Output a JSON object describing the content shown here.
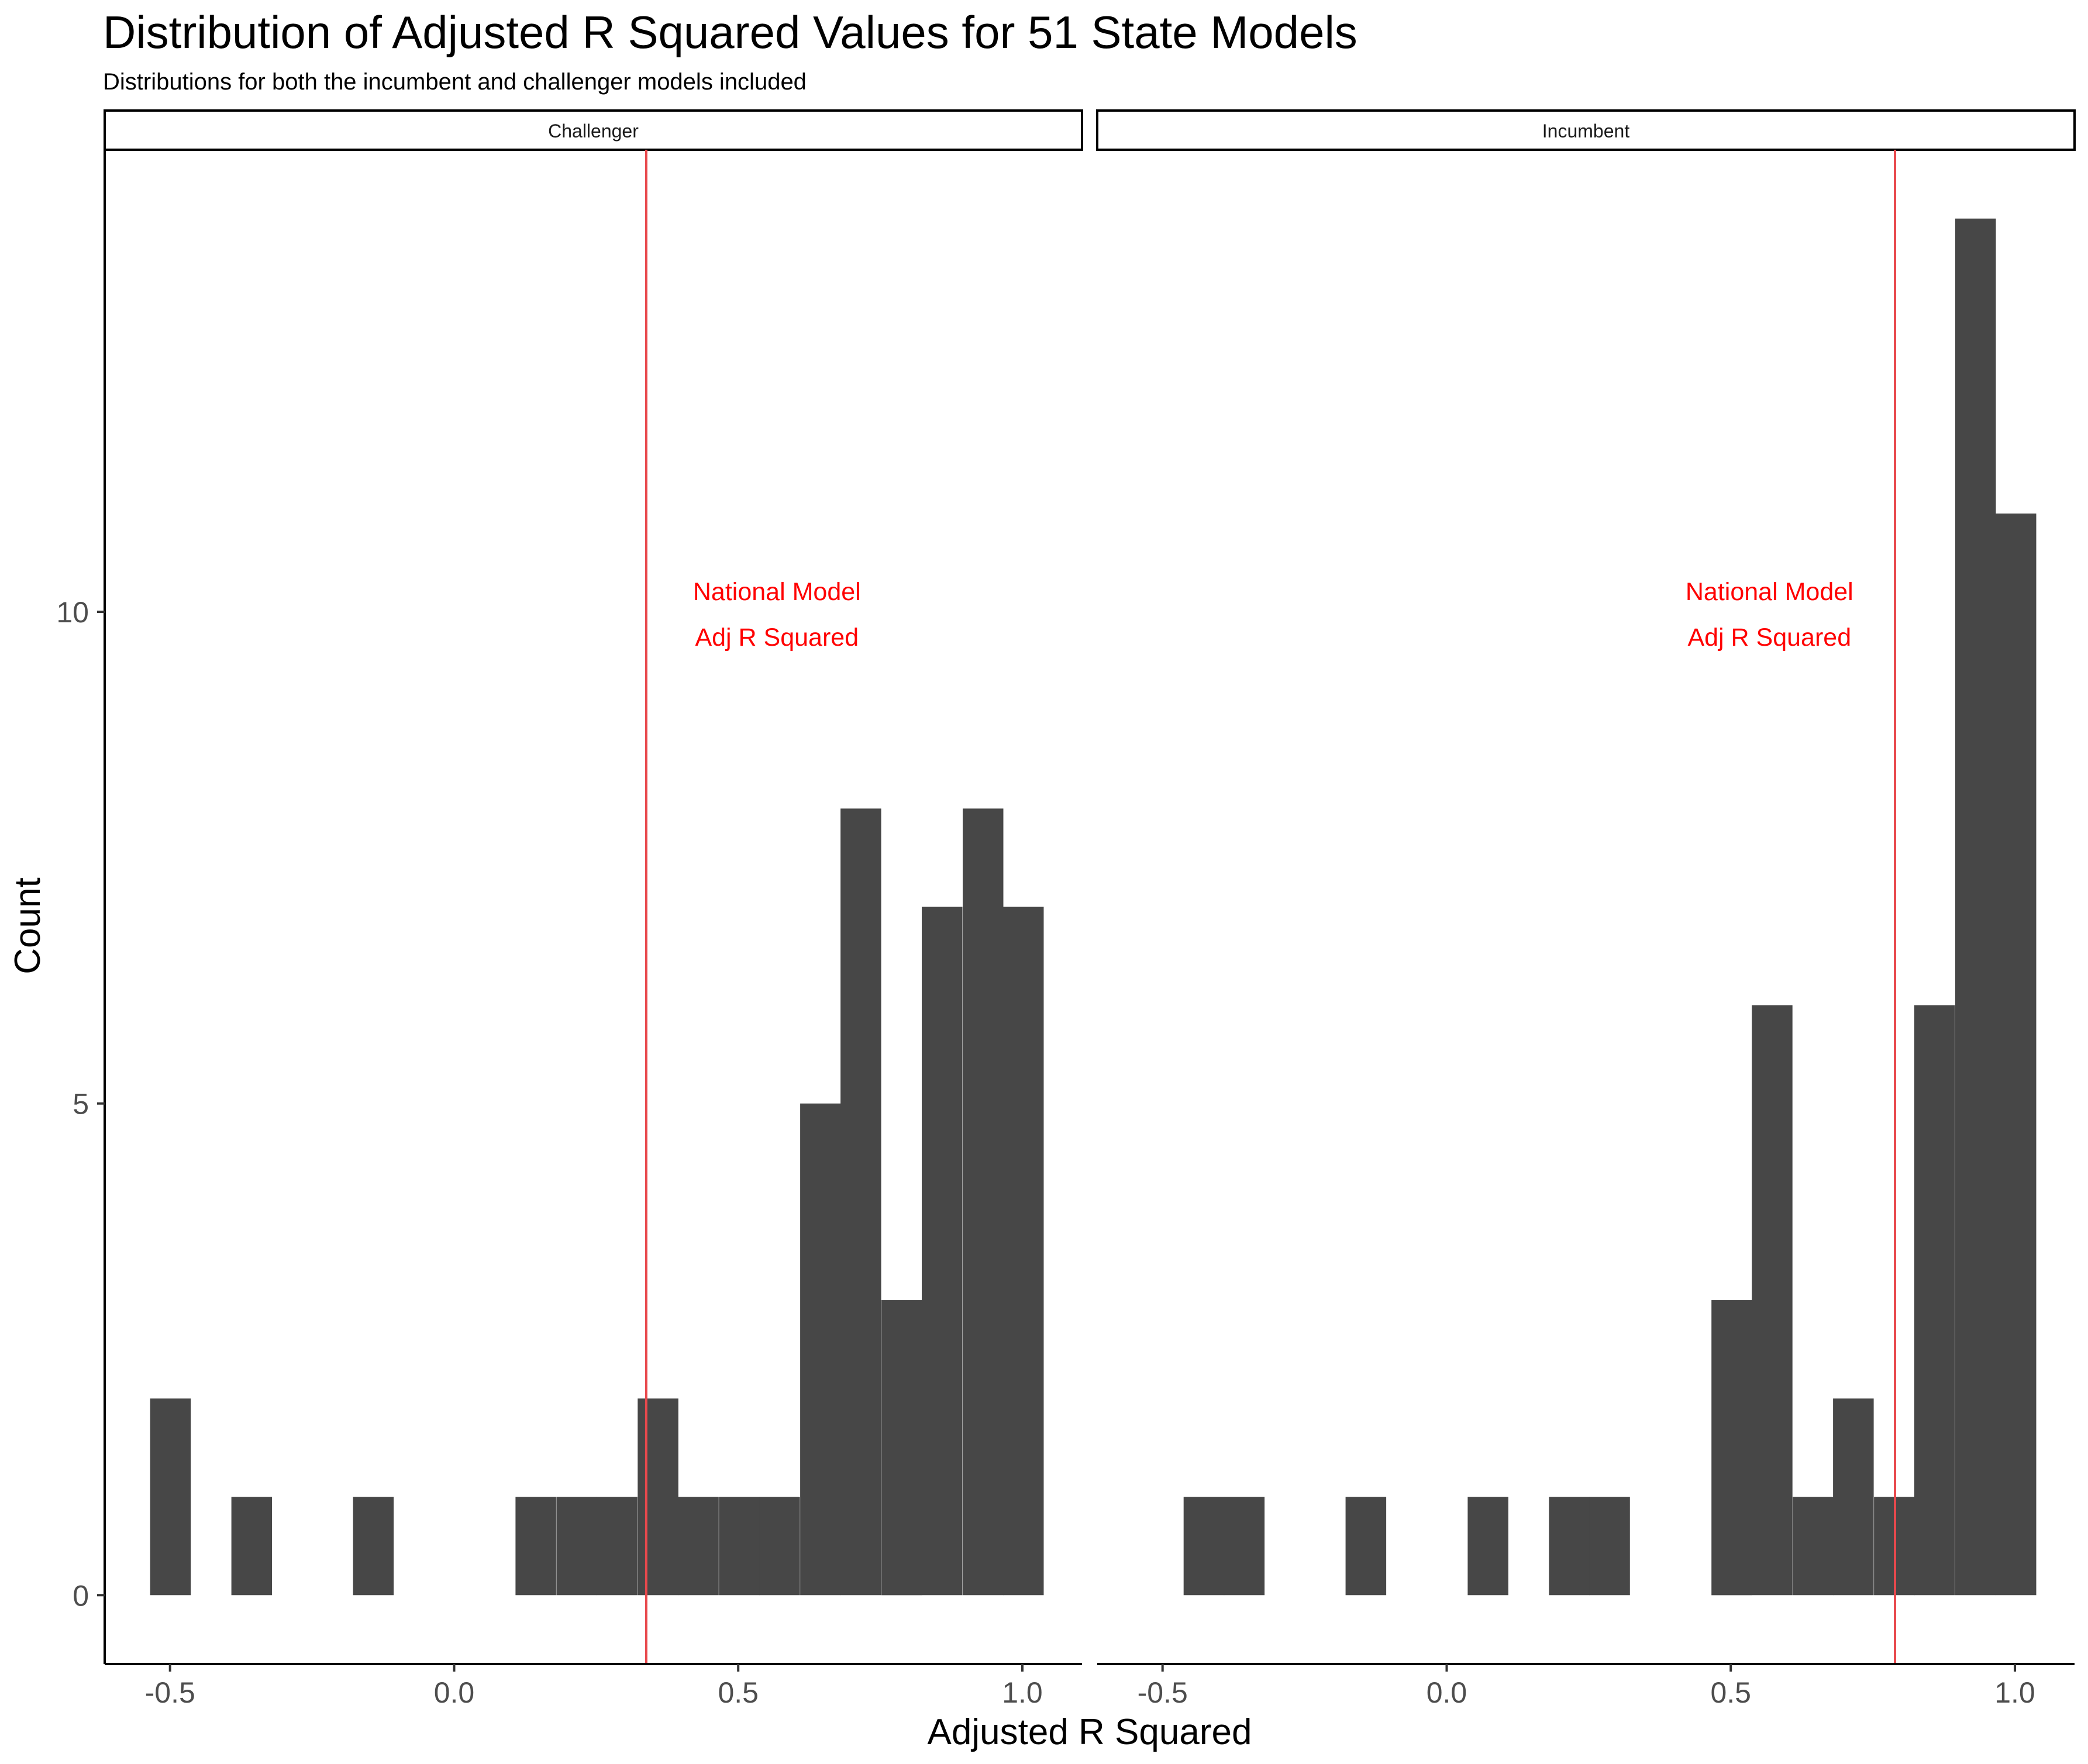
{
  "chart_data": {
    "type": "bar",
    "title": "Distribution of Adjusted R Squared Values for 51 State Models",
    "subtitle": "Distributions for both the incumbent and challenger models included",
    "xlabel": "Adjusted R Squared",
    "ylabel": "Count",
    "xlim": [
      -0.615,
      1.105
    ],
    "ylim": [
      -0.7,
      14.7
    ],
    "x_ticks": [
      -0.5,
      0.0,
      0.5,
      1.0
    ],
    "x_tick_labels": [
      "-0.5",
      "0.0",
      "0.5",
      "1.0"
    ],
    "y_ticks": [
      0,
      5,
      10
    ],
    "y_tick_labels": [
      "0",
      "5",
      "10"
    ],
    "bin_width": 0.0715,
    "bar_color": "#474747",
    "line_color": "#e8494d",
    "annotation_color": "#ff0000",
    "grid": false,
    "panels": [
      {
        "name": "Challenger",
        "bins": [
          {
            "x0": -0.535,
            "count": 2
          },
          {
            "x0": -0.392,
            "count": 1
          },
          {
            "x0": -0.178,
            "count": 1
          },
          {
            "x0": 0.108,
            "count": 1
          },
          {
            "x0": 0.18,
            "count": 1
          },
          {
            "x0": 0.251,
            "count": 1
          },
          {
            "x0": 0.323,
            "count": 2
          },
          {
            "x0": 0.394,
            "count": 1
          },
          {
            "x0": 0.466,
            "count": 1
          },
          {
            "x0": 0.537,
            "count": 1
          },
          {
            "x0": 0.609,
            "count": 5
          },
          {
            "x0": 0.68,
            "count": 8
          },
          {
            "x0": 0.752,
            "count": 3
          },
          {
            "x0": 0.823,
            "count": 7
          },
          {
            "x0": 0.895,
            "count": 8
          },
          {
            "x0": 0.966,
            "count": 7
          }
        ],
        "vline": 0.338,
        "annotation": {
          "lines": [
            "National Model",
            "Adj R Squared"
          ],
          "x": 0.568,
          "y": 10.0
        }
      },
      {
        "name": "Incumbent",
        "bins": [
          {
            "x0": -0.463,
            "count": 1
          },
          {
            "x0": -0.392,
            "count": 1
          },
          {
            "x0": -0.178,
            "count": 1
          },
          {
            "x0": 0.037,
            "count": 1
          },
          {
            "x0": 0.18,
            "count": 1
          },
          {
            "x0": 0.251,
            "count": 1
          },
          {
            "x0": 0.466,
            "count": 3
          },
          {
            "x0": 0.537,
            "count": 6
          },
          {
            "x0": 0.609,
            "count": 1
          },
          {
            "x0": 0.68,
            "count": 2
          },
          {
            "x0": 0.752,
            "count": 1
          },
          {
            "x0": 0.823,
            "count": 6
          },
          {
            "x0": 0.895,
            "count": 14
          },
          {
            "x0": 0.966,
            "count": 11
          }
        ],
        "vline": 0.789,
        "annotation": {
          "lines": [
            "National Model",
            "Adj R Squared"
          ],
          "x": 0.568,
          "y": 10.0
        }
      }
    ]
  }
}
